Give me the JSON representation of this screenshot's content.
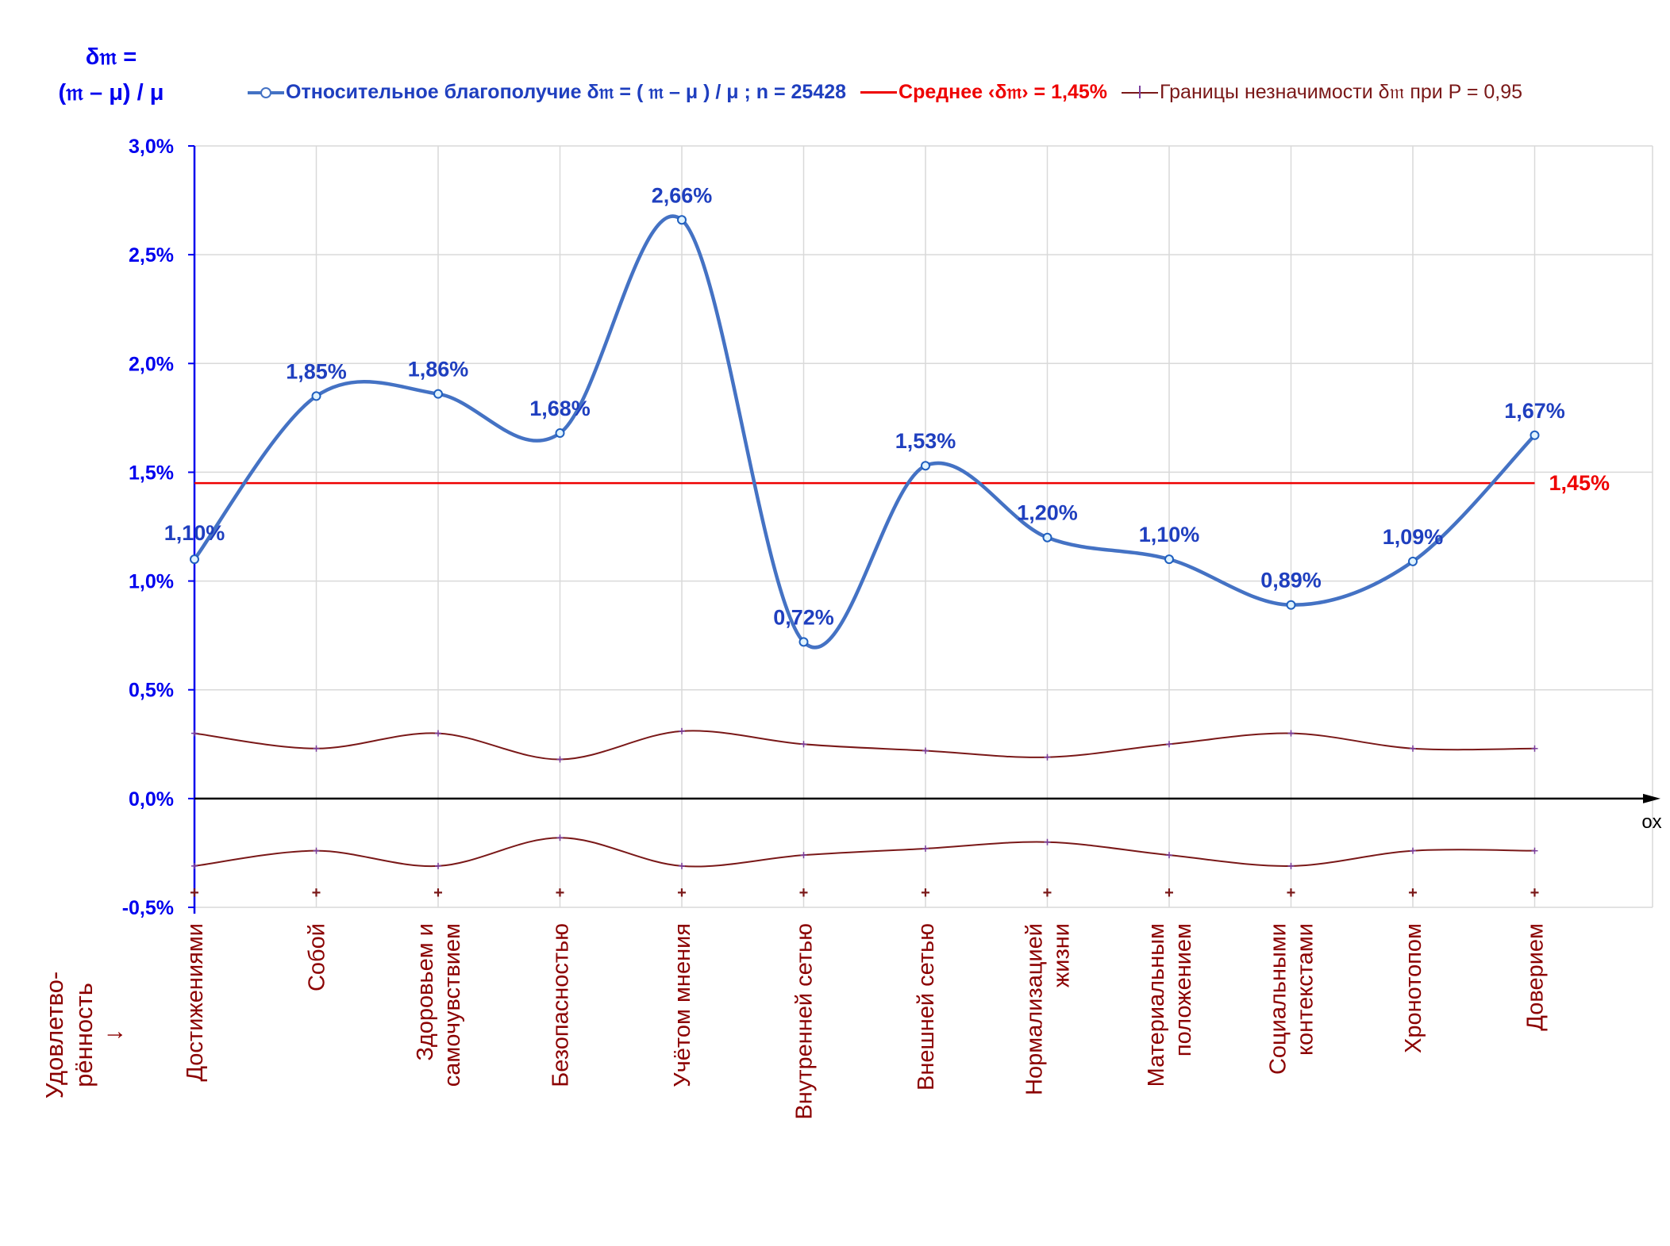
{
  "y_axis_title_top": [
    "δ𝔪 =",
    "(𝔪 – μ) / μ"
  ],
  "y_axis_title_bottom": [
    "Удовлетво-",
    "рённость",
    "↓"
  ],
  "x_axis_name": "ox",
  "legend": {
    "main": "Относительное благополучие δ𝔪 = ( 𝔪 – μ ) / μ ; n = 25428",
    "mean": "Среднее ‹δ𝔪› = 1,45%",
    "bounds": "Границы незначимости δ𝔪 при P = 0,95"
  },
  "colors": {
    "main_line": "#4472c4",
    "main_text": "#1f3fbf",
    "axis_text": "#0000ee",
    "mean": "#ee0000",
    "bounds": "#7a1818",
    "category_text": "#8b0000"
  },
  "chart_data": {
    "type": "line",
    "categories": [
      [
        "Достижениями"
      ],
      [
        "Собой"
      ],
      [
        "Здоровьем и",
        "самочувствием"
      ],
      [
        "Безопасностью"
      ],
      [
        "Учётом мнения"
      ],
      [
        "Внутренней сетью"
      ],
      [
        "Внешней сетью"
      ],
      [
        "Нормализацией",
        "жизни"
      ],
      [
        "Материальным",
        "положением"
      ],
      [
        "Социальными",
        "контекстами"
      ],
      [
        "Хронотопом"
      ],
      [
        "Доверием"
      ]
    ],
    "series": [
      {
        "name": "Относительное благополучие δ𝔪 = ( 𝔪 – μ ) / μ ; n = 25428",
        "values": [
          1.1,
          1.85,
          1.86,
          1.68,
          2.66,
          0.72,
          1.53,
          1.2,
          1.1,
          0.89,
          1.09,
          1.67
        ],
        "labels": [
          "1,10%",
          "1,85%",
          "1,86%",
          "1,68%",
          "2,66%",
          "0,72%",
          "1,53%",
          "1,20%",
          "1,10%",
          "0,89%",
          "1,09%",
          "1,67%"
        ]
      },
      {
        "name": "Границы незначимости δ𝔪 при P = 0,95",
        "values": [
          0.3,
          0.23,
          0.3,
          0.18,
          0.31,
          0.25,
          0.22,
          0.19,
          0.25,
          0.3,
          0.23,
          0.23
        ]
      },
      {
        "name": "Границы незначимости δ𝔪 при P = 0,95",
        "values": [
          -0.31,
          -0.24,
          -0.31,
          -0.18,
          -0.31,
          -0.26,
          -0.23,
          -0.2,
          -0.26,
          -0.31,
          -0.24,
          -0.24
        ]
      }
    ],
    "mean": {
      "value": 1.45,
      "label": "1,45%"
    },
    "ylim": [
      -0.5,
      3.0
    ],
    "yticks": [
      -0.5,
      0.0,
      0.5,
      1.0,
      1.5,
      2.0,
      2.5,
      3.0
    ],
    "ytick_labels": [
      "-0,5%",
      "0,0%",
      "0,5%",
      "1,0%",
      "1,5%",
      "2,0%",
      "2,5%",
      "3,0%"
    ],
    "grid": true,
    "legend_position": "top"
  }
}
